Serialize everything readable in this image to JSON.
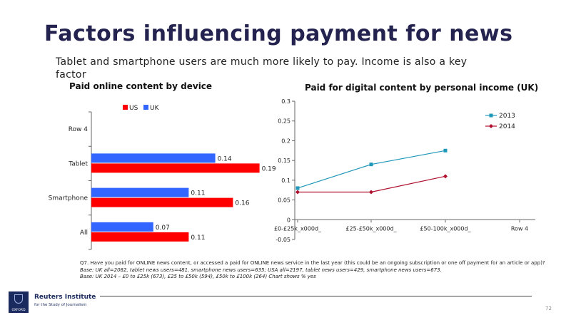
{
  "slide": {
    "title": "Factors influencing payment for news",
    "subtitle": "Tablet and smartphone users are much more likely to pay. Income is also a key factor",
    "notes": {
      "question": "Q7. Have you paid for ONLINE news content, or accessed a paid for ONLINE news service in the last year (this could be an ongoing subscription or one off payment for an article or app)?",
      "base1": "Base: UK all=2082, tablet news users=481, smartphone news users=635; USA all=2197, tablet news users=429, smartphone news users=673.",
      "base2": "Base: UK 2014 – £0 to £25k (673), £25 to £50k (594), £50k to £100k (264) Chart shows % yes"
    },
    "logo": {
      "crest_text": "OXFORD",
      "name": "Reuters Institute",
      "sub": "for the Study of Journalism"
    },
    "page_number": "72"
  },
  "chart_data": [
    {
      "type": "bar",
      "orientation": "horizontal",
      "title": "Paid online content by device",
      "categories": [
        "All",
        "Smartphone",
        "Tablet",
        "Row 4"
      ],
      "series": [
        {
          "name": "US",
          "color": "#ff0000",
          "values": [
            0.11,
            0.16,
            0.19,
            null
          ]
        },
        {
          "name": "UK",
          "color": "#3366ff",
          "values": [
            0.07,
            0.11,
            0.14,
            null
          ]
        }
      ],
      "data_labels": true,
      "legend": "top",
      "grid": false
    },
    {
      "type": "line",
      "title": "Paid for digital content by personal income (UK)",
      "categories": [
        "£0-£25k_x000d_",
        "£25-£50k_x000d_",
        "£50-100k_x000d_",
        "Row 4"
      ],
      "series": [
        {
          "name": "2013",
          "color": "#1f97b8",
          "marker": "square",
          "values": [
            0.08,
            0.14,
            0.175,
            null
          ]
        },
        {
          "name": "2014",
          "color": "#b0102e",
          "marker": "diamond",
          "values": [
            0.07,
            0.07,
            0.11,
            null
          ]
        }
      ],
      "ylim": [
        -0.05,
        0.3
      ],
      "yticks": [
        "-0.05",
        "0",
        "0.05",
        "0.1",
        "0.15",
        "0.2",
        "0.25",
        "0.3"
      ],
      "legend": "top-right",
      "grid": false
    }
  ]
}
